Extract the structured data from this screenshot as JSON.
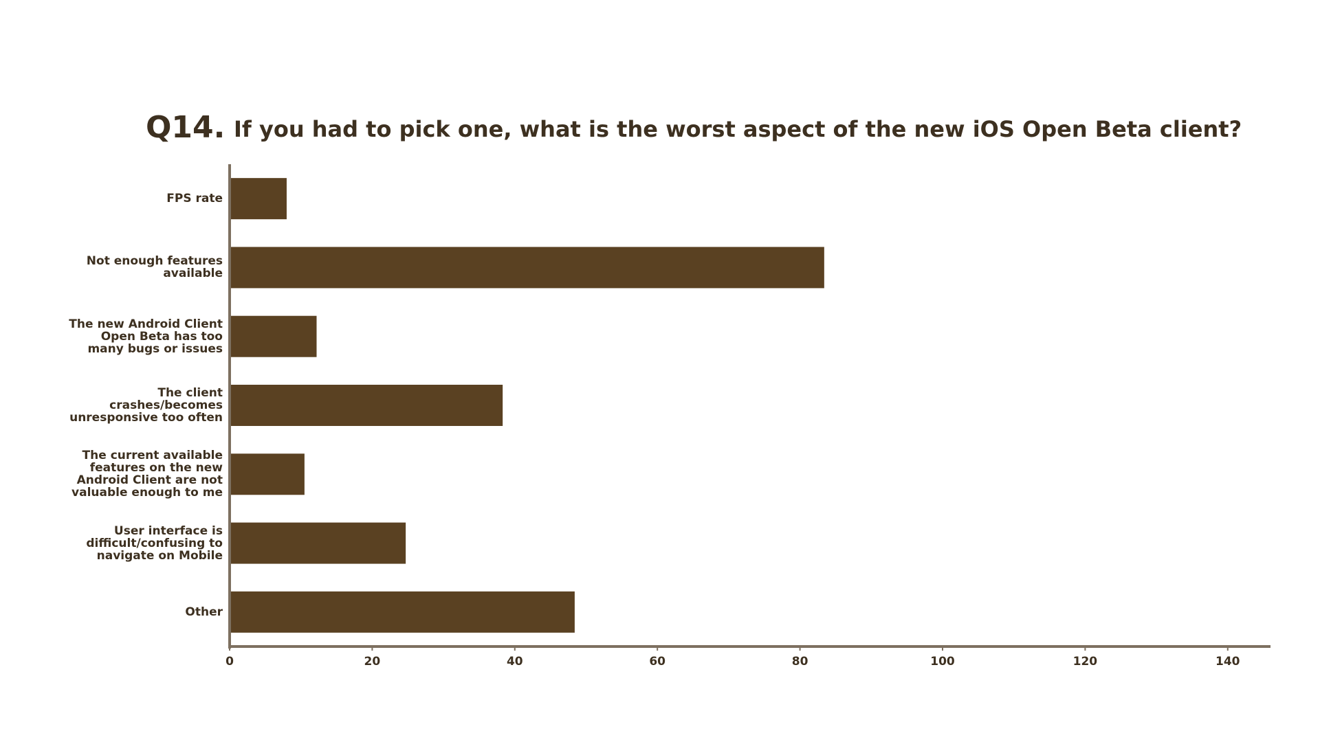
{
  "chart_data": {
    "type": "barh",
    "title_prefix": "Q14.",
    "title": "If you had to pick one, what is the worst aspect of the new iOS Open Beta client?",
    "categories": [
      "FPS rate",
      "Not enough features available",
      "The new Android Client Open Beta has too many bugs or issues",
      "The client crashes/becomes unresponsive too often",
      "The current available features on the new Android Client are not valuable enough to me",
      "User interface is difficult/confusing to navigate on Mobile",
      "Other"
    ],
    "values": [
      8.0,
      83.4,
      12.2,
      38.3,
      10.5,
      24.7,
      48.4
    ],
    "color": "#5a4122",
    "xlim": [
      0,
      146
    ],
    "xticks": [
      0,
      20,
      40,
      60,
      80,
      100,
      120,
      140
    ],
    "grid": false
  }
}
